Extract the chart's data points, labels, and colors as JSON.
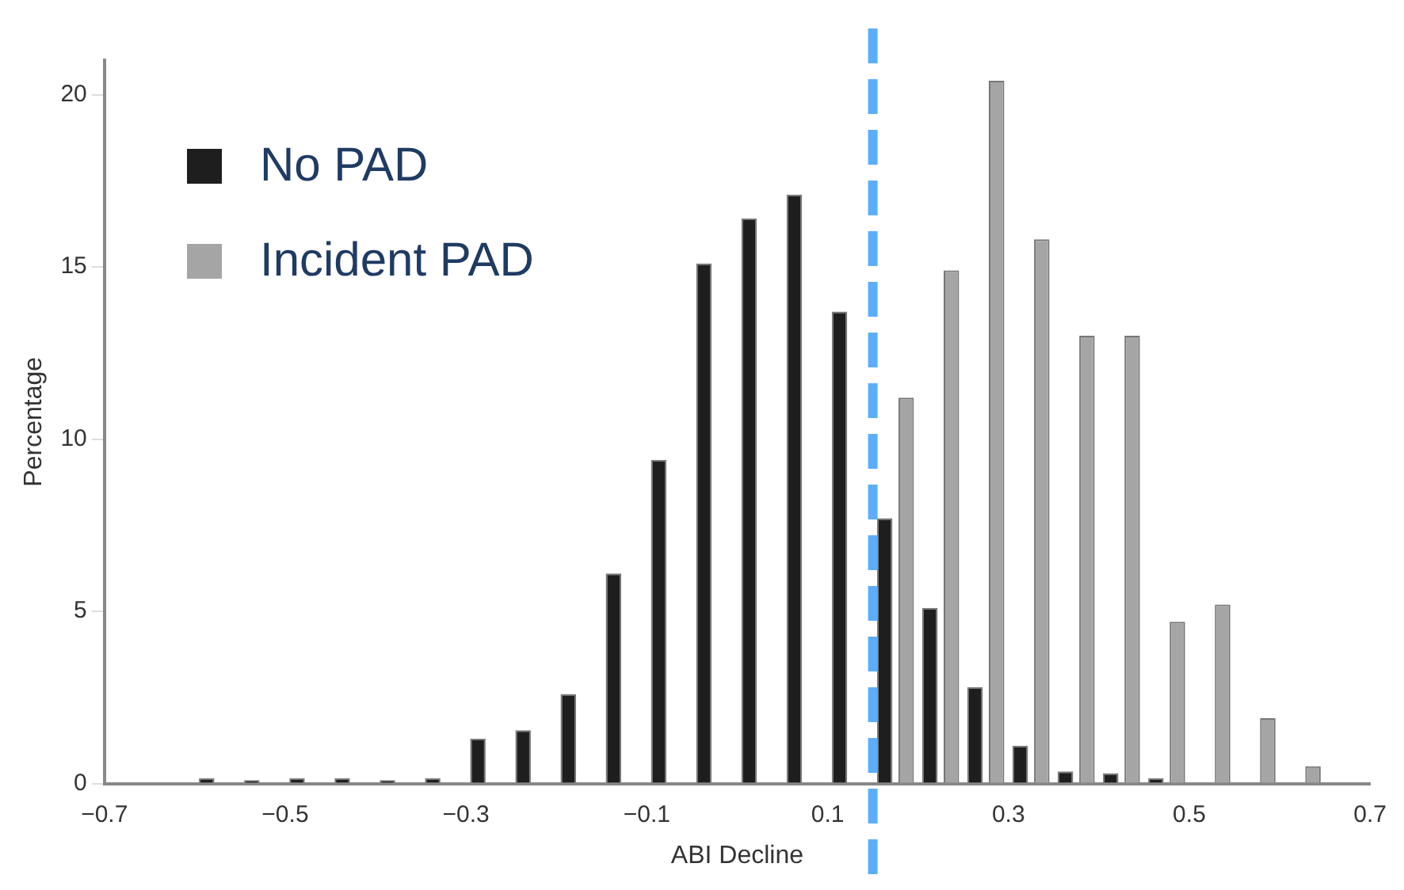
{
  "chart_data": {
    "type": "histogram",
    "xlabel": "ABI Decline",
    "ylabel": "Percentage",
    "bins": [
      -0.6,
      -0.55,
      -0.5,
      -0.45,
      -0.4,
      -0.35,
      -0.3,
      -0.25,
      -0.2,
      -0.15,
      -0.1,
      -0.05,
      0,
      0.05,
      0.1,
      0.15,
      0.2,
      0.25,
      0.3,
      0.35,
      0.4,
      0.45,
      0.5,
      0.55,
      0.6,
      0.65
    ],
    "series": [
      {
        "name": "No PAD",
        "color": "#1e1e1e",
        "values": [
          0.15,
          0.1,
          0.15,
          0.15,
          0.1,
          0.15,
          1.3,
          1.55,
          2.6,
          6.1,
          9.4,
          15.1,
          16.4,
          17.1,
          13.7,
          7.7,
          5.1,
          2.8,
          1.1,
          0.35,
          0.3,
          0.15,
          0,
          0,
          0
        ]
      },
      {
        "name": "Incident PAD",
        "color": "#a5a5a5",
        "values": [
          0,
          0,
          0,
          0,
          0,
          0,
          0,
          0,
          0,
          0,
          0,
          0,
          0,
          0,
          0,
          11.2,
          14.9,
          20.4,
          15.8,
          13.0,
          13.0,
          4.7,
          5.2,
          1.9,
          0.5
        ]
      }
    ],
    "xlim": [
      -0.7,
      0.7
    ],
    "xticks": [
      {
        "value": -0.7,
        "label": "−0.7"
      },
      {
        "value": -0.5,
        "label": "−0.5"
      },
      {
        "value": -0.3,
        "label": "−0.3"
      },
      {
        "value": -0.1,
        "label": "−0.1"
      },
      0.1,
      0.3,
      0.5,
      0.7
    ],
    "ylim": [
      0,
      21
    ],
    "yticks": [
      0,
      5,
      10,
      15,
      20
    ],
    "ref_lines": [
      {
        "axis": "x",
        "value": 0.15,
        "color": "#5aaefc",
        "line_style": "dashed"
      }
    ],
    "grid": false,
    "legend": "top left"
  }
}
